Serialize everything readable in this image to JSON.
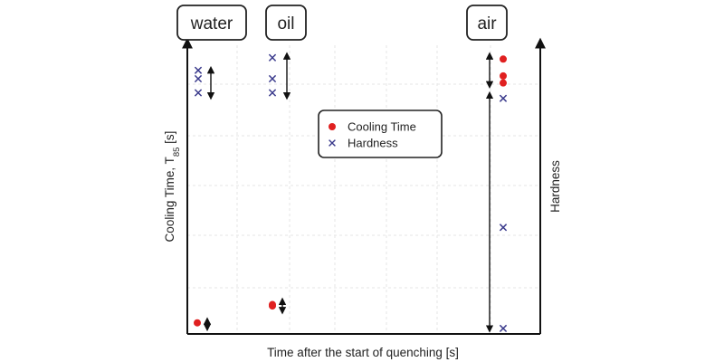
{
  "chart_data": {
    "type": "scatter",
    "categories": [
      "water",
      "oil",
      "air"
    ],
    "xlabel": "Time after the start of quenching  [s]",
    "ylabel_left": "Cooling Time, T",
    "ylabel_left_sub": "85",
    "ylabel_left_unit": " [s]",
    "ylabel_right": "Hardness",
    "grid": true,
    "legend_position": "center",
    "series": [
      {
        "name": "Cooling Time",
        "marker": "circle",
        "color": "#e02020",
        "points": [
          {
            "category": "water",
            "value": 0.03
          },
          {
            "category": "oil",
            "value": 0.09
          },
          {
            "category": "oil",
            "value": 0.095
          },
          {
            "category": "air",
            "value": 0.97
          },
          {
            "category": "air",
            "value": 0.91
          },
          {
            "category": "air",
            "value": 0.885
          }
        ]
      },
      {
        "name": "Hardness",
        "marker": "x",
        "color": "#3a3a8c",
        "points": [
          {
            "category": "water",
            "value": 0.93
          },
          {
            "category": "water",
            "value": 0.9
          },
          {
            "category": "water",
            "value": 0.85
          },
          {
            "category": "oil",
            "value": 0.975
          },
          {
            "category": "oil",
            "value": 0.9
          },
          {
            "category": "oil",
            "value": 0.85
          },
          {
            "category": "air",
            "value": 0.83
          },
          {
            "category": "air",
            "value": 0.37
          },
          {
            "category": "air",
            "value": 0.01
          }
        ]
      }
    ],
    "ranges": [
      {
        "category": "water",
        "from": 0.94,
        "to": 0.83
      },
      {
        "category": "water",
        "from": 0.045,
        "to": 0.005
      },
      {
        "category": "oil",
        "from": 0.99,
        "to": 0.83
      },
      {
        "category": "oil",
        "from": 0.115,
        "to": 0.065
      },
      {
        "category": "air",
        "from": 0.99,
        "to": 0.87
      },
      {
        "category": "air",
        "from": 0.85,
        "to": 0.0
      }
    ]
  }
}
